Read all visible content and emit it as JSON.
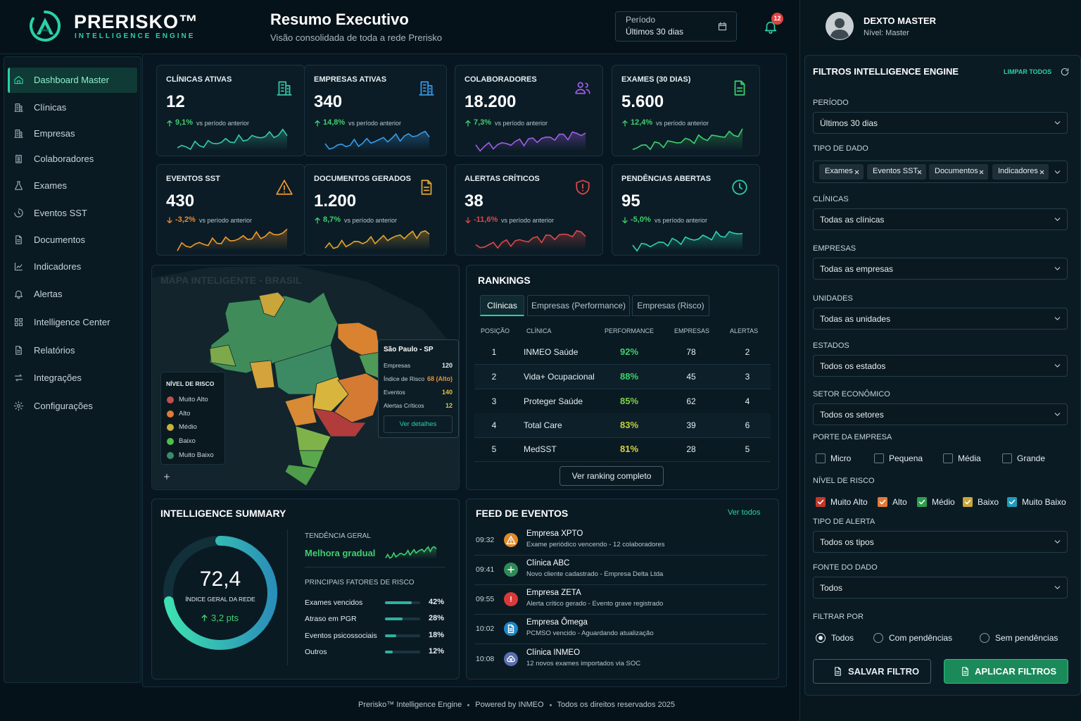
{
  "brand": {
    "name": "PRERISKO™",
    "tagline": "INTELLIGENCE ENGINE"
  },
  "header": {
    "title": "Resumo Executivo",
    "subtitle": "Visão consolidada de toda a rede Prerisko",
    "period_label": "Período",
    "period_value": "Últimos 30 dias",
    "notifications": 12
  },
  "user": {
    "name": "DEXTO MASTER",
    "level": "Nível: Master"
  },
  "nav": {
    "items": [
      "Dashboard Master",
      "Clínicas",
      "Empresas",
      "Colaboradores",
      "Exames",
      "Eventos SST",
      "Documentos",
      "Indicadores",
      "Alertas",
      "Intelligence Center",
      "Relatórios",
      "Integrações",
      "Configurações"
    ],
    "active": 0
  },
  "kpis": [
    {
      "label": "CLÍNICAS ATIVAS",
      "value": "12",
      "change": "9,1%",
      "direction": "up",
      "note": "vs período anterior",
      "color": "#38c9a6",
      "change_color": "#3fd06c"
    },
    {
      "label": "EMPRESAS ATIVAS",
      "value": "340",
      "change": "14,8%",
      "direction": "up",
      "note": "vs período anterior",
      "color": "#3a9be8",
      "change_color": "#3fd06c"
    },
    {
      "label": "COLABORADORES",
      "value": "18.200",
      "change": "7,3%",
      "direction": "up",
      "note": "vs período anterior",
      "color": "#a05de8",
      "change_color": "#3fd06c"
    },
    {
      "label": "EXAMES (30 DIAS)",
      "value": "5.600",
      "change": "12,4%",
      "direction": "up",
      "note": "vs período anterior",
      "color": "#3fd06c",
      "change_color": "#3fd06c"
    },
    {
      "label": "EVENTOS SST",
      "value": "430",
      "change": "-3,2%",
      "direction": "down",
      "note": "vs período anterior",
      "color": "#f29a2e",
      "change_color": "#f2892e"
    },
    {
      "label": "DOCUMENTOS GERADOS",
      "value": "1.200",
      "change": "8,7%",
      "direction": "up",
      "note": "vs período anterior",
      "color": "#e3a72f",
      "change_color": "#3fd06c"
    },
    {
      "label": "ALERTAS CRÍTICOS",
      "value": "38",
      "change": "-11,6%",
      "direction": "down",
      "note": "vs período anterior",
      "color": "#e04848",
      "change_color": "#e04848"
    },
    {
      "label": "PENDÊNCIAS ABERTAS",
      "value": "95",
      "change": "-5,0%",
      "direction": "down",
      "note": "vs período anterior",
      "color": "#2fcfb0",
      "change_color": "#3fd06c"
    }
  ],
  "map": {
    "title": "MAPA INTELIGENTE - BRASIL",
    "legend_title": "NÍVEL DE RISCO",
    "legend": [
      {
        "label": "Muito Alto",
        "color": "#c0504d"
      },
      {
        "label": "Alto",
        "color": "#e07b35"
      },
      {
        "label": "Médio",
        "color": "#c9b03a"
      },
      {
        "label": "Baixo",
        "color": "#4fbf4a"
      },
      {
        "label": "Muito Baixo",
        "color": "#3b8a6b"
      }
    ],
    "tooltip": {
      "title": "São Paulo - SP",
      "rows": [
        {
          "label": "Empresas",
          "value": "120",
          "color": "#e6eef2"
        },
        {
          "label": "Índice de Risco",
          "value": "68 (Alto)",
          "color": "#e8923a"
        },
        {
          "label": "Eventos",
          "value": "140",
          "color": "#e3c23a"
        },
        {
          "label": "Alertas Críticos",
          "value": "12",
          "color": "#e3c23a"
        }
      ],
      "button": "Ver detalhes"
    }
  },
  "rankings": {
    "title": "RANKINGS",
    "tabs": [
      "Clínicas",
      "Empresas (Performance)",
      "Empresas (Risco)"
    ],
    "active_tab": 0,
    "columns": [
      "POSIÇÃO",
      "CLÍNICA",
      "PERFORMANCE",
      "EMPRESAS",
      "ALERTAS"
    ],
    "rows": [
      {
        "position": 1,
        "name": "INMEO Saúde",
        "performance": "92%",
        "companies": 78,
        "alerts": 2,
        "color": "#3fd06c"
      },
      {
        "position": 2,
        "name": "Vida+ Ocupacional",
        "performance": "88%",
        "companies": 45,
        "alerts": 3,
        "color": "#3fd06c"
      },
      {
        "position": 3,
        "name": "Proteger Saúde",
        "performance": "85%",
        "companies": 62,
        "alerts": 4,
        "color": "#7fd04a"
      },
      {
        "position": 4,
        "name": "Total Care",
        "performance": "83%",
        "companies": 39,
        "alerts": 6,
        "color": "#c2d03a"
      },
      {
        "position": 5,
        "name": "MedSST",
        "performance": "81%",
        "companies": 28,
        "alerts": 5,
        "color": "#d8d040"
      }
    ],
    "button": "Ver ranking completo"
  },
  "summary": {
    "title": "INTELLIGENCE SUMMARY",
    "index": {
      "value": 72.4,
      "label": "72,4"
    },
    "index_label": "ÍNDICE GERAL DA REDE",
    "index_change": "3,2 pts",
    "trend_label": "TENDÊNCIA GERAL",
    "trend_value": "Melhora gradual",
    "factors_title": "PRINCIPAIS FATORES DE RISCO",
    "factors": [
      {
        "name": "Exames vencidos",
        "value": 42,
        "label": "42%"
      },
      {
        "name": "Atraso em PGR",
        "value": 28,
        "label": "28%"
      },
      {
        "name": "Eventos psicossociais",
        "value": 18,
        "label": "18%"
      },
      {
        "name": "Outros",
        "value": 12,
        "label": "12%"
      }
    ]
  },
  "feed": {
    "title": "FEED DE EVENTOS",
    "link": "Ver todos",
    "events": [
      {
        "time": "09:32",
        "title": "Empresa XPTO",
        "description": "Exame periódico vencendo - 12 colaboradores",
        "color": "#e08a2b"
      },
      {
        "time": "09:41",
        "title": "Clínica ABC",
        "description": "Novo cliente cadastrado - Empresa Delta Ltda",
        "color": "#2e8b57"
      },
      {
        "time": "09:55",
        "title": "Empresa ZETA",
        "description": "Alerta crítico gerado - Evento grave registrado",
        "color": "#d83a3a"
      },
      {
        "time": "10:02",
        "title": "Empresa Ômega",
        "description": "PCMSO vencido - Aguardando atualização",
        "color": "#1e88c8"
      },
      {
        "time": "10:08",
        "title": "Clínica INMEO",
        "description": "12 novos exames importados via SOC",
        "color": "#5a6fb0"
      }
    ]
  },
  "filters": {
    "title": "FILTROS INTELLIGENCE ENGINE",
    "clear": "LIMPAR TODOS",
    "sections": [
      {
        "label": "PERÍODO",
        "type": "select",
        "value": "Últimos 30 dias"
      },
      {
        "label": "TIPO DE DADO",
        "type": "chips",
        "chips": [
          "Exames",
          "Eventos SST",
          "Documentos",
          "Indicadores"
        ]
      },
      {
        "label": "CLÍNICAS",
        "type": "select",
        "value": "Todas as clínicas"
      },
      {
        "label": "EMPRESAS",
        "type": "select",
        "value": "Todas as empresas"
      },
      {
        "label": "UNIDADES",
        "type": "select",
        "value": "Todas as unidades"
      },
      {
        "label": "ESTADOS",
        "type": "select",
        "value": "Todos os estados"
      },
      {
        "label": "SETOR ECONÔMICO",
        "type": "select",
        "value": "Todos os setores"
      },
      {
        "label": "PORTE DA EMPRESA",
        "type": "checkboxes",
        "options": [
          {
            "text": "Micro",
            "checked": false
          },
          {
            "text": "Pequena",
            "checked": false
          },
          {
            "text": "Média",
            "checked": false
          },
          {
            "text": "Grande",
            "checked": false
          }
        ]
      },
      {
        "label": "NÍVEL DE RISCO",
        "type": "checkboxes",
        "options": [
          {
            "text": "Muito Alto",
            "checked": true,
            "color": "#c0392b"
          },
          {
            "text": "Alto",
            "checked": true,
            "color": "#e07b35"
          },
          {
            "text": "Médio",
            "checked": true,
            "color": "#2e9e4f"
          },
          {
            "text": "Baixo",
            "checked": true,
            "color": "#c9a53a"
          },
          {
            "text": "Muito Baixo",
            "checked": true,
            "color": "#1f9bb8"
          }
        ]
      },
      {
        "label": "TIPO DE ALERTA",
        "type": "select",
        "value": "Todos os tipos"
      },
      {
        "label": "FONTE DO DADO",
        "type": "select",
        "value": "Todos"
      },
      {
        "label": "FILTRAR POR",
        "type": "radios",
        "options": [
          "Todos",
          "Com pendências",
          "Sem pendências"
        ],
        "selected": 0
      }
    ],
    "buttons": [
      "SALVAR FILTRO",
      "APLICAR FILTROS"
    ]
  },
  "footer": [
    "Prerisko™ Intelligence Engine",
    "Powered by INMEO",
    "Todos os direitos reservados 2025"
  ]
}
